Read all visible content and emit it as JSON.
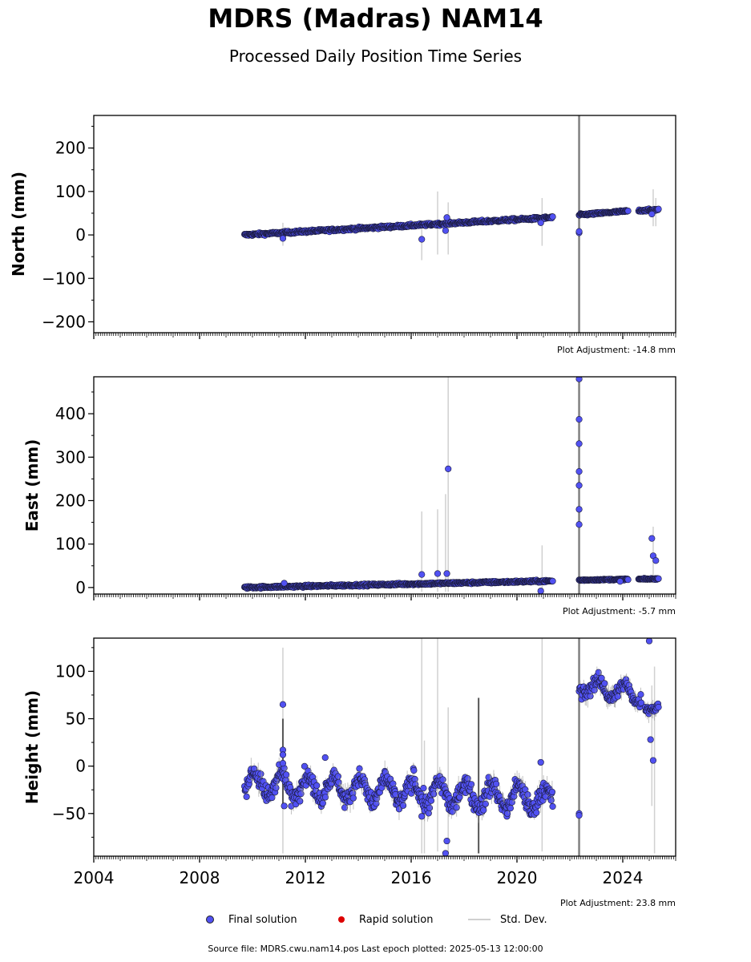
{
  "title": "MDRS (Madras) NAM14",
  "subtitle": "Processed Daily Position Time Series",
  "legend": {
    "final": "Final solution",
    "rapid": "Rapid solution",
    "std": "Std. Dev."
  },
  "source": "Source file: MDRS.cwu.nam14.pos  Last epoch plotted: 2025-05-13 12:00:00",
  "colors": {
    "final": "#5151f2",
    "rapid": "#dd0000",
    "std": "#d0d0d0",
    "equipment_change": "#808080"
  },
  "chart_data": [
    {
      "type": "scatter",
      "ylabel": "North (mm)",
      "xlim": [
        2004,
        2026
      ],
      "ylim": [
        -225,
        275
      ],
      "yticks": [
        -200,
        -100,
        0,
        100,
        200
      ],
      "ytick_labels": [
        "−200",
        "−100",
        "0",
        "100",
        "200"
      ],
      "adjustment": "Plot Adjustment: -14.8 mm",
      "equipment_change": [
        2022.35
      ],
      "segments": [
        {
          "x0": 2009.7,
          "x1": 2021.35,
          "y0": 0,
          "y1": 40,
          "noise": 3
        },
        {
          "x0": 2022.35,
          "x1": 2024.2,
          "y0": 46,
          "y1": 55,
          "noise": 2.5
        },
        {
          "x0": 2024.6,
          "x1": 2025.35,
          "y0": 56,
          "y1": 58,
          "noise": 2.5
        }
      ],
      "outliers": [
        [
          2011.15,
          -8
        ],
        [
          2016.4,
          -10
        ],
        [
          2017.3,
          10
        ],
        [
          2017.35,
          40
        ],
        [
          2020.9,
          28
        ],
        [
          2022.35,
          5
        ],
        [
          2022.35,
          8
        ],
        [
          2025.1,
          48
        ]
      ],
      "stdbars": [
        [
          2011.15,
          -25,
          28
        ],
        [
          2016.4,
          -58,
          30
        ],
        [
          2017.0,
          -45,
          100
        ],
        [
          2017.4,
          -45,
          75
        ],
        [
          2020.95,
          -25,
          85
        ],
        [
          2025.15,
          20,
          105
        ],
        [
          2025.25,
          20,
          85
        ]
      ],
      "darkstd": []
    },
    {
      "type": "scatter",
      "ylabel": "East (mm)",
      "xlim": [
        2004,
        2026
      ],
      "ylim": [
        -15,
        485
      ],
      "yticks": [
        0,
        100,
        200,
        300,
        400
      ],
      "ytick_labels": [
        "0",
        "100",
        "200",
        "300",
        "400"
      ],
      "adjustment": "Plot Adjustment: -5.7 mm",
      "equipment_change": [
        2022.35
      ],
      "segments": [
        {
          "x0": 2009.7,
          "x1": 2021.35,
          "y0": 0,
          "y1": 15,
          "noise": 2.5
        },
        {
          "x0": 2022.35,
          "x1": 2024.2,
          "y0": 17,
          "y1": 19,
          "noise": 1.5
        },
        {
          "x0": 2024.6,
          "x1": 2025.35,
          "y0": 19,
          "y1": 20,
          "noise": 1.5
        }
      ],
      "outliers": [
        [
          2011.2,
          10
        ],
        [
          2016.4,
          30
        ],
        [
          2017.0,
          32
        ],
        [
          2017.35,
          32
        ],
        [
          2017.4,
          273
        ],
        [
          2020.9,
          -8
        ],
        [
          2022.35,
          480
        ],
        [
          2022.35,
          387
        ],
        [
          2022.35,
          331
        ],
        [
          2022.35,
          267
        ],
        [
          2022.35,
          235
        ],
        [
          2022.35,
          180
        ],
        [
          2022.35,
          145
        ],
        [
          2023.9,
          14
        ],
        [
          2025.1,
          113
        ],
        [
          2025.15,
          73
        ],
        [
          2025.25,
          62
        ]
      ],
      "stdbars": [
        [
          2016.4,
          -10,
          175
        ],
        [
          2017.0,
          -10,
          180
        ],
        [
          2017.3,
          -10,
          215
        ],
        [
          2017.4,
          -10,
          485
        ],
        [
          2020.95,
          -10,
          97
        ],
        [
          2025.15,
          10,
          140
        ]
      ],
      "darkstd": []
    },
    {
      "type": "scatter",
      "ylabel": "Height (mm)",
      "xlim": [
        2004,
        2026
      ],
      "ylim": [
        -95,
        135
      ],
      "yticks": [
        -50,
        0,
        50,
        100
      ],
      "ytick_labels": [
        "−50",
        "0",
        "50",
        "100"
      ],
      "xticks": [
        2004,
        2008,
        2012,
        2016,
        2020,
        2024
      ],
      "xtick_labels": [
        "2004",
        "2008",
        "2012",
        "2016",
        "2020",
        "2024"
      ],
      "adjustment": "Plot Adjustment: 23.8 mm",
      "equipment_change": [
        2022.35
      ],
      "segments": [
        {
          "x0": 2009.7,
          "x1": 2021.35,
          "y0": -18,
          "y1": -35,
          "noise": 10,
          "seasonal": 12
        },
        {
          "x0": 2022.35,
          "x1": 2024.7,
          "y0": 85,
          "y1": 75,
          "noise": 8,
          "seasonal": 8
        },
        {
          "x0": 2024.85,
          "x1": 2025.35,
          "y0": 60,
          "y1": 62,
          "noise": 5
        }
      ],
      "outliers": [
        [
          2011.15,
          65
        ],
        [
          2011.15,
          17
        ],
        [
          2011.15,
          12
        ],
        [
          2011.15,
          3
        ],
        [
          2011.2,
          -42
        ],
        [
          2012.75,
          9
        ],
        [
          2016.4,
          -53
        ],
        [
          2017.3,
          -92
        ],
        [
          2017.35,
          -79
        ],
        [
          2020.9,
          4
        ],
        [
          2022.35,
          -50
        ],
        [
          2022.35,
          -52
        ],
        [
          2025.0,
          132
        ],
        [
          2025.05,
          28
        ],
        [
          2025.15,
          6
        ]
      ],
      "stdbars": [
        [
          2011.15,
          -92,
          125
        ],
        [
          2016.4,
          -92,
          135
        ],
        [
          2016.5,
          -92,
          27
        ],
        [
          2017.0,
          -90,
          135
        ],
        [
          2017.4,
          -92,
          62
        ],
        [
          2020.95,
          -90,
          135
        ],
        [
          2025.1,
          -42,
          85
        ],
        [
          2025.2,
          -92,
          105
        ]
      ],
      "darkstd": [
        [
          2011.15,
          -45,
          50
        ],
        [
          2018.55,
          -92,
          72
        ]
      ]
    }
  ]
}
